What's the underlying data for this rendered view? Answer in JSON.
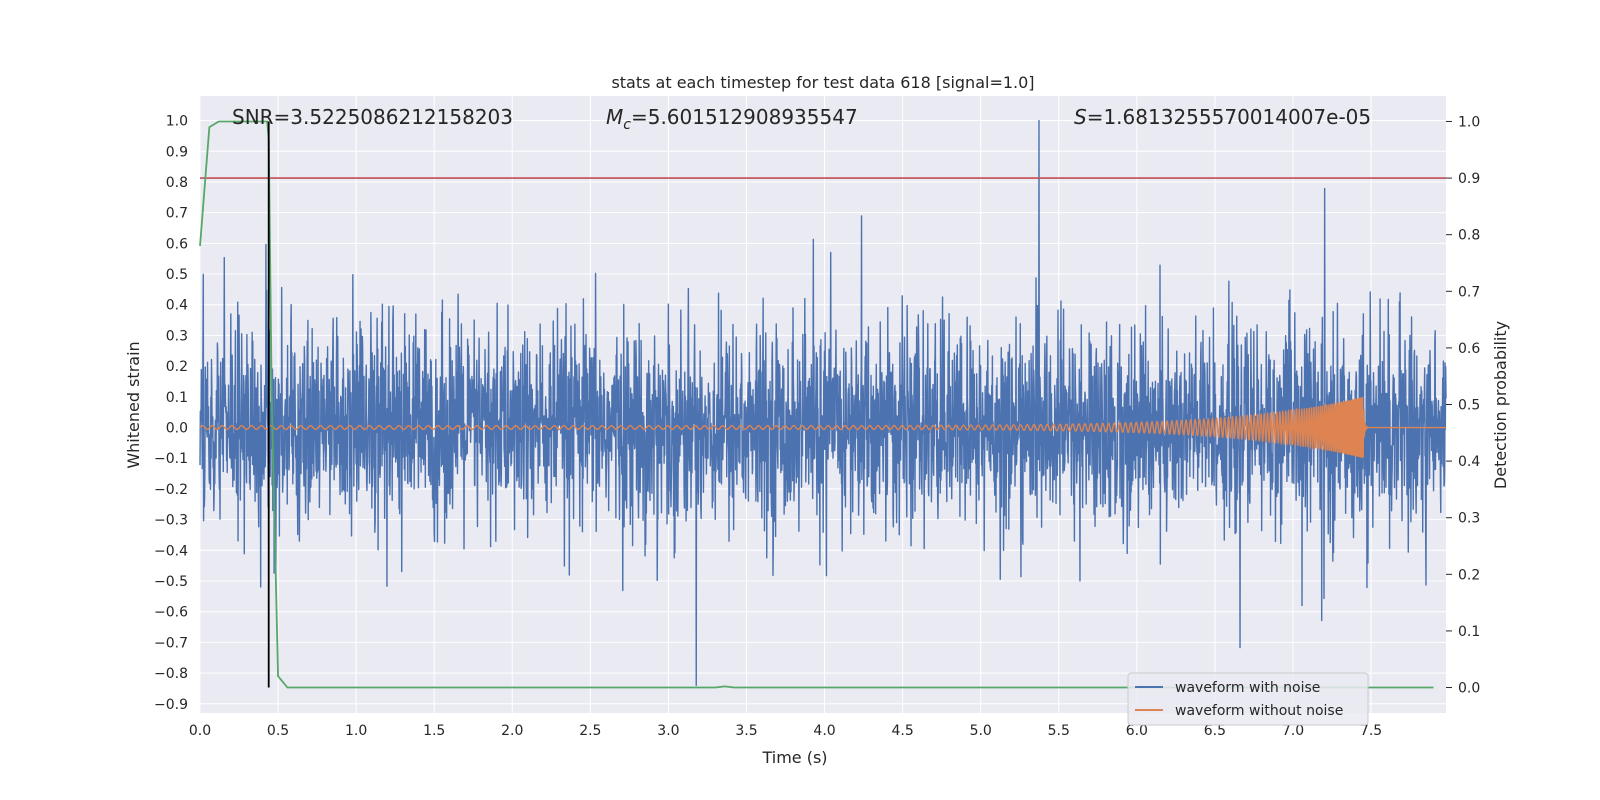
{
  "chart_data": {
    "type": "line",
    "title": "stats at each timestep for test data 618 [signal=1.0]",
    "xlabel": "Time (s)",
    "ylabel": "Whitened strain",
    "ylabel_right": "Detection probability",
    "xlim": [
      0.0,
      7.98
    ],
    "ylim": [
      -0.93,
      1.08
    ],
    "ylim_right": [
      -0.045,
      1.045
    ],
    "xticks": [
      "0.0",
      "0.5",
      "1.0",
      "1.5",
      "2.0",
      "2.5",
      "3.0",
      "3.5",
      "4.0",
      "4.5",
      "5.0",
      "5.5",
      "6.0",
      "6.5",
      "7.0",
      "7.5"
    ],
    "yticks": [
      "1.0",
      "0.9",
      "0.8",
      "0.7",
      "0.6",
      "0.5",
      "0.4",
      "0.3",
      "0.2",
      "0.1",
      "0.0",
      "−0.1",
      "−0.2",
      "−0.3",
      "−0.4",
      "−0.5",
      "−0.6",
      "−0.7",
      "−0.8",
      "−0.9"
    ],
    "yticks_right": [
      "1.0",
      "0.9",
      "0.8",
      "0.7",
      "0.6",
      "0.5",
      "0.4",
      "0.3",
      "0.2",
      "0.1",
      "0.0"
    ],
    "annotations": {
      "snr": "SNR=3.5225086212158203",
      "mc_symbol": "M",
      "mc_sub": "c",
      "mc_value": "=5.601512908935547",
      "s_symbol": "S",
      "s_value": "=1.6813255570014007e-05"
    },
    "legend": {
      "position": "lower-right",
      "entries": [
        "waveform with noise",
        "waveform without noise"
      ]
    },
    "series": [
      {
        "name": "waveform with noise",
        "axis": "left",
        "color": "#4c72b0",
        "noise_std": 0.16,
        "noise_max": 1.0,
        "noise_min": -0.84,
        "x_range": [
          0.0,
          7.98
        ]
      },
      {
        "name": "waveform without noise",
        "axis": "left",
        "color": "#dd8452",
        "chirp_start_amplitude": 0.006,
        "chirp_peak_amplitude": 0.1,
        "merger_time": 7.45,
        "start_period": 0.063,
        "end_period": 0.008
      },
      {
        "name": "detection probability",
        "axis": "right",
        "color": "#55a868",
        "x": [
          0.0,
          0.06,
          0.12,
          0.2,
          0.3,
          0.38,
          0.43,
          0.44,
          0.46,
          0.5,
          0.56,
          0.7,
          1.5,
          2.5,
          3.3,
          3.36,
          3.42,
          4.0,
          5.0,
          6.0,
          7.0,
          7.9
        ],
        "y": [
          0.78,
          0.99,
          1.0,
          1.0,
          1.0,
          1.0,
          1.0,
          0.97,
          0.5,
          0.02,
          0.0,
          0.0,
          0.0,
          0.0,
          0.0,
          0.002,
          0.0,
          0.0,
          0.0,
          0.0,
          0.0,
          0.0
        ]
      }
    ],
    "threshold_line": {
      "axis": "right",
      "value": 0.9,
      "color": "#c44e52"
    },
    "marker_line": {
      "axis": "right",
      "x": 0.44,
      "y_range": [
        0.0,
        1.0
      ],
      "color": "#000000"
    },
    "colors": {
      "background": "#eaeaf2",
      "grid": "#ffffff"
    }
  }
}
